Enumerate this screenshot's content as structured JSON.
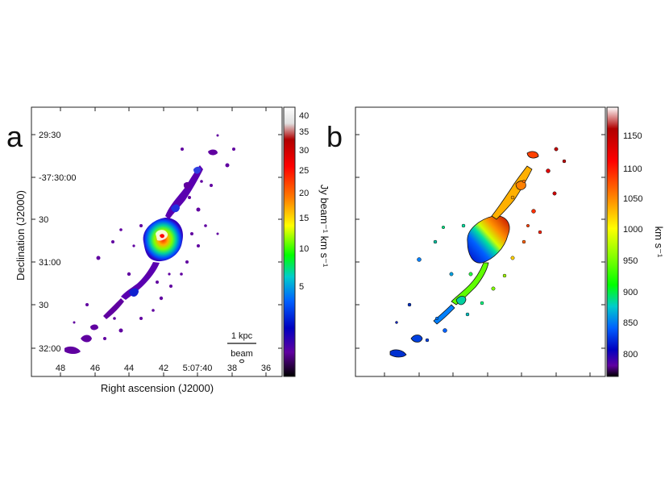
{
  "chart_data": [
    {
      "type": "heatmap",
      "panel_label": "a",
      "xlabel": "Right ascension (J2000)",
      "ylabel": "Declination (J2000)",
      "x_ticks": [
        "48",
        "46",
        "44",
        "42",
        "5:07:40",
        "38",
        "36"
      ],
      "y_ticks": [
        "29:30",
        "-37:30:00",
        "30",
        "31:00",
        "30",
        "32:00"
      ],
      "colorbar": {
        "label": "Jy beam⁻¹ km s⁻¹",
        "ticks": [
          "40",
          "35",
          "30",
          "25",
          "20",
          "15",
          "10",
          "5"
        ],
        "colors": [
          "#ffffff",
          "#e0e0e0",
          "#b00000",
          "#ff0000",
          "#ff8000",
          "#ffff00",
          "#00ff00",
          "#00cccc",
          "#0060ff",
          "#0000c0",
          "#6000a0",
          "#200020",
          "#000000"
        ]
      },
      "annotations": {
        "scale_bar": "1 kpc",
        "beam": "beam"
      }
    },
    {
      "type": "heatmap",
      "panel_label": "b",
      "ylabel_right": "km s⁻¹",
      "colorbar": {
        "label": "km s⁻¹",
        "ticks": [
          "1150",
          "1100",
          "1050",
          "1000",
          "950",
          "900",
          "850",
          "800"
        ],
        "colors": [
          "#ffffff",
          "#b00000",
          "#ff0000",
          "#ff8000",
          "#ffff00",
          "#80ff00",
          "#00ff00",
          "#00cccc",
          "#0060ff",
          "#0000c0",
          "#6000a0",
          "#000000"
        ]
      }
    }
  ]
}
